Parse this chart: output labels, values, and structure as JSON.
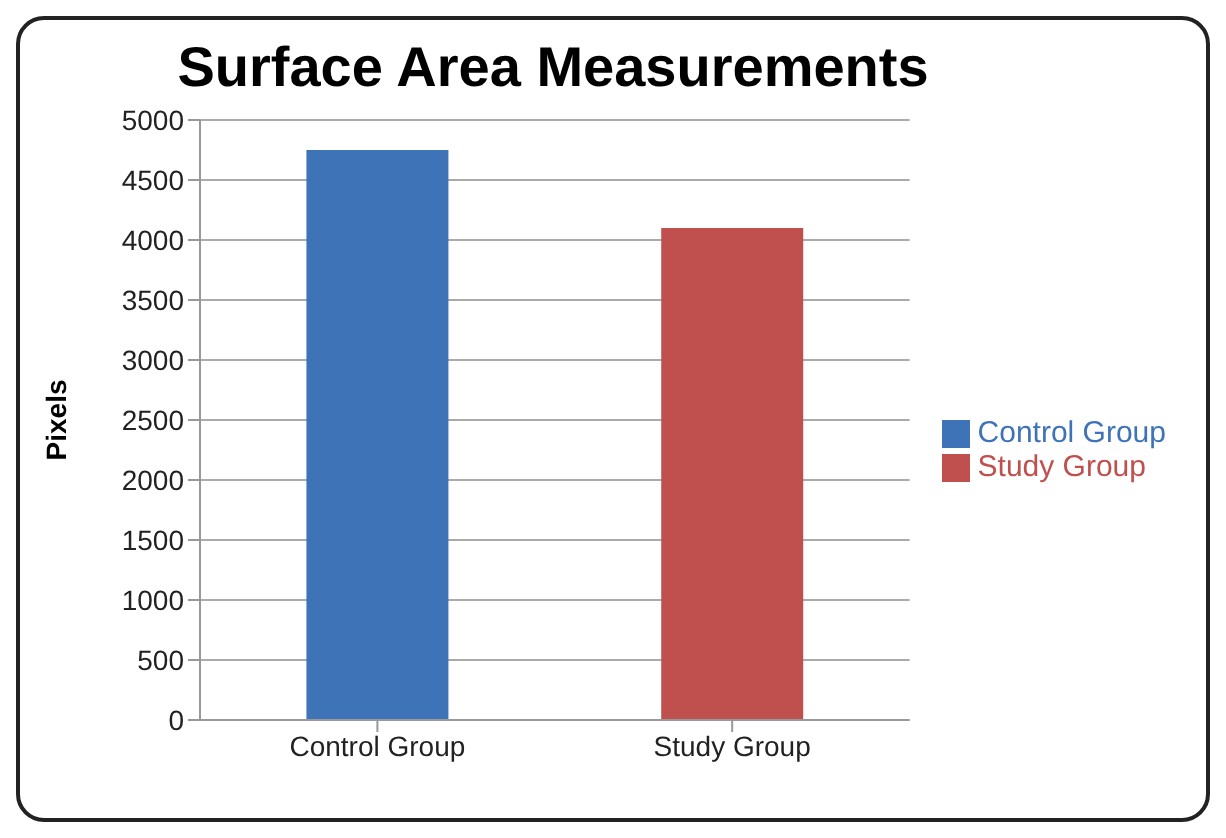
{
  "chart_data": {
    "type": "bar",
    "title": "Surface Area Measurements",
    "ylabel": "Pixels",
    "categories": [
      "Control Group",
      "Study Group"
    ],
    "series": [
      {
        "name": "Control Group",
        "color": "#3f73b8",
        "values": [
          4750,
          null
        ]
      },
      {
        "name": "Study Group",
        "color": "#c0504d",
        "values": [
          null,
          4100
        ]
      }
    ],
    "ylim": [
      0,
      5000
    ],
    "yticks": [
      0,
      500,
      1000,
      1500,
      2000,
      2500,
      3000,
      3500,
      4000,
      4500,
      5000
    ],
    "grid": "y",
    "legend": "right"
  }
}
